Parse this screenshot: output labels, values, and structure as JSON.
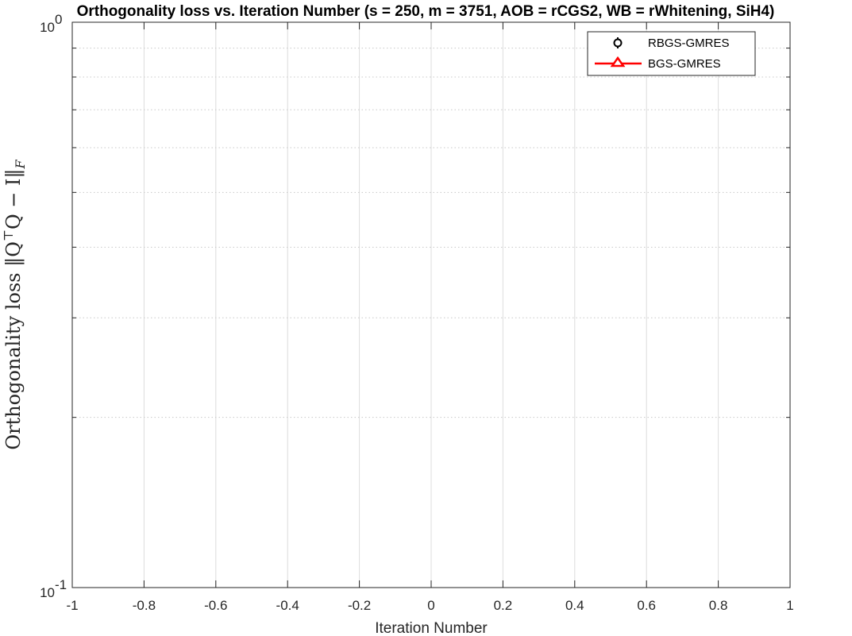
{
  "chart_data": {
    "type": "line",
    "title": "Orthogonality loss vs. Iteration Number (s = 250, m = 3751, AOB = rCGS2, WB = rWhitening, SiH4)",
    "xlabel": "Iteration Number",
    "ylabel": "Orthogonality loss ‖Q",
    "ylabel_sup": "⊤",
    "ylabel_mid": "Q − I‖",
    "ylabel_sub": "F",
    "xlim": [
      -1,
      1
    ],
    "ylim": [
      0.1,
      1
    ],
    "yscale": "log",
    "xticks": [
      -1,
      -0.8,
      -0.6,
      -0.4,
      -0.2,
      0,
      0.2,
      0.4,
      0.6,
      0.8,
      1
    ],
    "xtick_labels": [
      "-1",
      "-0.8",
      "-0.6",
      "-0.4",
      "-0.2",
      "0",
      "0.2",
      "0.4",
      "0.6",
      "0.8",
      "1"
    ],
    "yticks": [
      {
        "base": "10",
        "exp": "-1",
        "value": 0.1
      },
      {
        "base": "10",
        "exp": "0",
        "value": 1
      }
    ],
    "grid": true,
    "legend_position": "top-right",
    "series": [
      {
        "name": "RBGS-GMRES",
        "marker": "circle",
        "color": "#000000",
        "line": false,
        "x": [],
        "y": []
      },
      {
        "name": "BGS-GMRES",
        "marker": "triangle",
        "color": "#ff0000",
        "line": true,
        "x": [],
        "y": []
      }
    ]
  }
}
